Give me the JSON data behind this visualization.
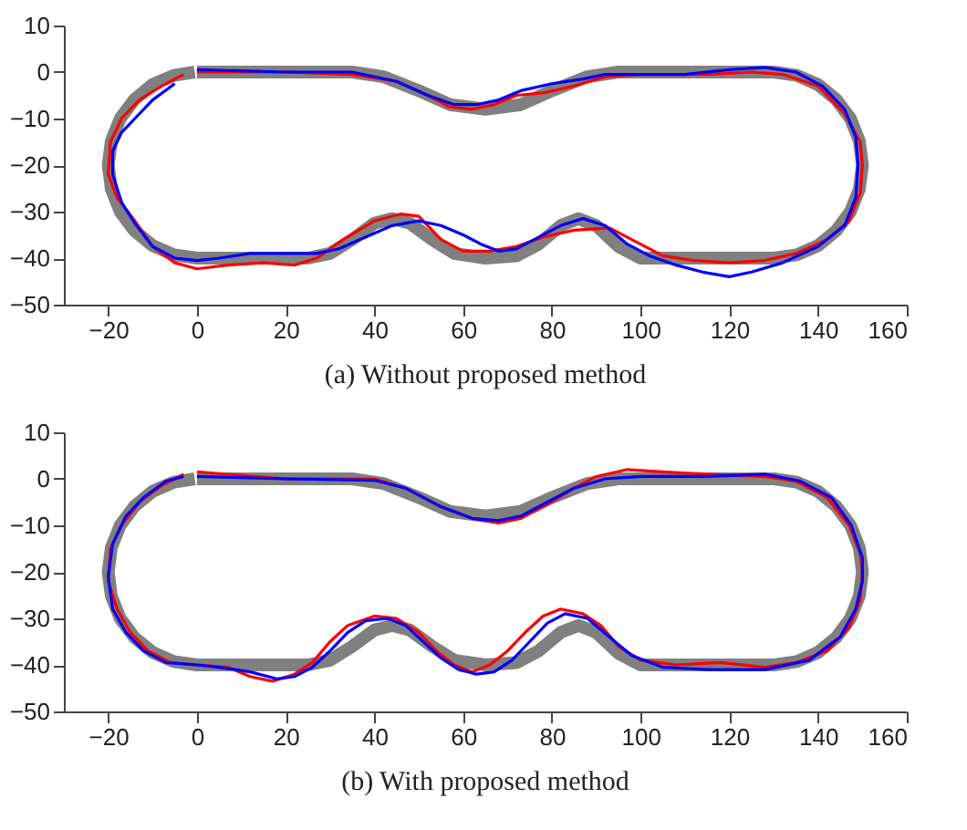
{
  "chart_data": [
    {
      "type": "line",
      "title": "(a) Without proposed method",
      "xlim": [
        -30,
        160
      ],
      "xticks": [
        -20,
        0,
        20,
        40,
        60,
        80,
        100,
        120,
        140,
        160
      ],
      "ylim": [
        -50,
        10
      ],
      "yticks": [
        -50,
        -40,
        -30,
        -20,
        -10,
        0,
        10
      ],
      "grid": false,
      "line_style": "solid",
      "series": [
        {
          "color": "#808080",
          "x": [
            0,
            20,
            35,
            42,
            50,
            57,
            65,
            73,
            80,
            88,
            95,
            110,
            130,
            135.2,
            140,
            144.1,
            147.3,
            149.3,
            150,
            149.3,
            147.3,
            144.1,
            140,
            135.2,
            130,
            110,
            100,
            95,
            90,
            86,
            82,
            77,
            72,
            65,
            58,
            53,
            48,
            44,
            40,
            35,
            30,
            25,
            0,
            -5.2,
            -10,
            -14.1,
            -17.3,
            -19.3,
            -20,
            -19.3,
            -17.3,
            -14.1,
            -10,
            -5.2,
            -0.5
          ],
          "values": [
            0,
            0,
            0,
            -1,
            -4,
            -7,
            -8,
            -7,
            -4,
            -1,
            0,
            0,
            0,
            -0.7,
            -2.7,
            -5.9,
            -10,
            -14.8,
            -20,
            -25.2,
            -30,
            -34.1,
            -37.3,
            -39.3,
            -40,
            -40,
            -40,
            -37.5,
            -33,
            -31.5,
            -33,
            -37,
            -39.5,
            -40,
            -39,
            -36,
            -32.5,
            -31.5,
            -32.5,
            -36,
            -39,
            -40,
            -40,
            -39.3,
            -37.3,
            -34.1,
            -30,
            -25.2,
            -20,
            -14.8,
            -10,
            -5.9,
            -2.7,
            -0.7,
            0
          ]
        },
        {
          "color": "#ff0000",
          "x": [
            0,
            20,
            35,
            45,
            52,
            57,
            62,
            67,
            72,
            78,
            85,
            92,
            100,
            115,
            125,
            132,
            140,
            146,
            149.5,
            150,
            149.5,
            147,
            142,
            135,
            128,
            120,
            112,
            105,
            98,
            93,
            85,
            78,
            72,
            66,
            60,
            55,
            50,
            46,
            40,
            33,
            27,
            22,
            15,
            7,
            0,
            -5,
            -10,
            -14,
            -18,
            -20,
            -19.5,
            -17,
            -13,
            -8,
            -3
          ],
          "values": [
            0,
            0,
            -0.5,
            -2,
            -5,
            -7.5,
            -8,
            -7,
            -5,
            -4.5,
            -3,
            -1,
            -0.5,
            -0.5,
            0,
            -0.5,
            -3,
            -9,
            -15,
            -20,
            -26,
            -32,
            -36,
            -39,
            -40.5,
            -41,
            -40.5,
            -39.5,
            -36,
            -33.5,
            -34,
            -35.5,
            -37.5,
            -38.5,
            -38.5,
            -36,
            -31,
            -30.5,
            -32,
            -36,
            -40,
            -41.5,
            -41,
            -41.5,
            -42.3,
            -41,
            -37.5,
            -32,
            -27,
            -22,
            -15,
            -10,
            -6,
            -3,
            -0.5
          ]
        },
        {
          "color": "#0000ff",
          "x": [
            0,
            20,
            35,
            45,
            52,
            58,
            63,
            68,
            73,
            80,
            87,
            92,
            100,
            110,
            120,
            128,
            135,
            141,
            146,
            148.5,
            149,
            148.5,
            146,
            140,
            132,
            125,
            120,
            114,
            108,
            102,
            97,
            92,
            87,
            82,
            77,
            72,
            68,
            64,
            60,
            55,
            50,
            44,
            38,
            32,
            27,
            20,
            12,
            5,
            0,
            -5,
            -10,
            -14,
            -17,
            -19,
            -19,
            -17,
            -14,
            -10,
            -5
          ],
          "values": [
            0.5,
            0,
            0,
            -2,
            -5,
            -7,
            -7,
            -6,
            -4,
            -2.5,
            -1.5,
            -0.5,
            -0.5,
            -0.5,
            0.5,
            1,
            0,
            -3,
            -8,
            -14,
            -20,
            -27,
            -33,
            -37.5,
            -41,
            -43,
            -44,
            -43,
            -41.5,
            -39.5,
            -37,
            -33,
            -31.5,
            -33,
            -35.5,
            -38,
            -38.5,
            -37,
            -35,
            -33,
            -32,
            -33,
            -35.5,
            -38,
            -39,
            -39,
            -39,
            -40,
            -40.5,
            -40,
            -37.5,
            -32.5,
            -28,
            -22,
            -17,
            -13,
            -10,
            -6,
            -2.5
          ]
        }
      ]
    },
    {
      "type": "line",
      "title": "(b) With proposed method",
      "xlim": [
        -30,
        160
      ],
      "xticks": [
        -20,
        0,
        20,
        40,
        60,
        80,
        100,
        120,
        140,
        160
      ],
      "ylim": [
        -50,
        10
      ],
      "yticks": [
        -50,
        -40,
        -30,
        -20,
        -10,
        0,
        10
      ],
      "grid": false,
      "line_style": "solid",
      "series": [
        {
          "color": "#808080",
          "x": [
            0,
            20,
            35,
            42,
            50,
            57,
            65,
            73,
            80,
            88,
            95,
            110,
            130,
            135.2,
            140,
            144.1,
            147.3,
            149.3,
            150,
            149.3,
            147.3,
            144.1,
            140,
            135.2,
            130,
            110,
            100,
            95,
            90,
            86,
            82,
            77,
            72,
            65,
            58,
            53,
            48,
            44,
            40,
            35,
            30,
            25,
            0,
            -5.2,
            -10,
            -14.1,
            -17.3,
            -19.3,
            -20,
            -19.3,
            -17.3,
            -14.1,
            -10,
            -5.2,
            -0.5
          ],
          "values": [
            0,
            0,
            0,
            -1,
            -4,
            -7,
            -8,
            -7,
            -4,
            -1,
            0,
            0,
            0,
            -0.7,
            -2.7,
            -5.9,
            -10,
            -14.8,
            -20,
            -25.2,
            -30,
            -34.1,
            -37.3,
            -39.3,
            -40,
            -40,
            -40,
            -37.5,
            -33,
            -31.5,
            -33,
            -37,
            -39.5,
            -40,
            -39,
            -36,
            -32.5,
            -31.5,
            -32.5,
            -36,
            -39,
            -40,
            -40,
            -39.3,
            -37.3,
            -34.1,
            -30,
            -25.2,
            -20,
            -14.8,
            -10,
            -5.9,
            -2.7,
            -0.7,
            0
          ]
        },
        {
          "color": "#ff0000",
          "x": [
            0,
            20,
            40,
            47,
            55,
            62,
            68,
            73,
            79,
            85,
            90,
            97,
            105,
            115,
            128,
            135,
            142,
            147,
            149.5,
            150,
            149.5,
            147,
            142,
            135,
            128,
            118,
            108,
            100,
            95,
            91,
            87,
            82,
            78,
            74,
            70,
            66,
            62,
            58,
            54,
            50,
            45,
            40,
            34,
            30,
            26,
            22,
            17,
            12,
            7,
            0,
            -6,
            -11,
            -15,
            -18,
            -20,
            -19.5,
            -17,
            -13,
            -8,
            -3
          ],
          "values": [
            1.5,
            0,
            0,
            -2,
            -6,
            -8.5,
            -9.5,
            -8.5,
            -5.5,
            -2,
            0.5,
            2,
            1.5,
            1,
            0.5,
            -0.5,
            -4,
            -10,
            -16,
            -20,
            -26,
            -32,
            -37,
            -39.5,
            -40.5,
            -39.5,
            -40,
            -39,
            -36,
            -31.5,
            -29,
            -28,
            -29.5,
            -33,
            -37,
            -40,
            -41.5,
            -40,
            -37,
            -33,
            -30,
            -29.5,
            -31.5,
            -35,
            -39.5,
            -42,
            -43.5,
            -42.5,
            -40.5,
            -40,
            -39.5,
            -37,
            -33,
            -28,
            -22,
            -15,
            -10,
            -5,
            -1.5,
            1
          ]
        },
        {
          "color": "#0000ff",
          "x": [
            0,
            20,
            40,
            47,
            55,
            62,
            68,
            73,
            79,
            85,
            92,
            100,
            115,
            128,
            136,
            143,
            147.5,
            150,
            150,
            148.5,
            145,
            138,
            128,
            115,
            105,
            98,
            93,
            88,
            83,
            79,
            75,
            71,
            67,
            63,
            59,
            55,
            51,
            47,
            43,
            38,
            34,
            30,
            26,
            22,
            18,
            12,
            5,
            0,
            -7,
            -12,
            -16,
            -19,
            -20,
            -19,
            -16,
            -12,
            -7,
            -3
          ],
          "values": [
            0.5,
            0,
            -0.3,
            -2,
            -6,
            -8.5,
            -9,
            -8,
            -5,
            -2,
            0,
            0.5,
            0.5,
            1,
            -0.5,
            -4,
            -10,
            -17,
            -22,
            -28,
            -34,
            -39,
            -41,
            -41,
            -40.5,
            -38,
            -34,
            -30,
            -29,
            -31,
            -35,
            -39,
            -41.5,
            -42,
            -41,
            -38.5,
            -35,
            -31.5,
            -30,
            -30.5,
            -33,
            -37,
            -40.5,
            -42.5,
            -43,
            -41.5,
            -40.5,
            -40,
            -39.5,
            -37,
            -33,
            -28,
            -21,
            -14,
            -8,
            -4,
            -0.5,
            0.5
          ]
        }
      ]
    }
  ]
}
